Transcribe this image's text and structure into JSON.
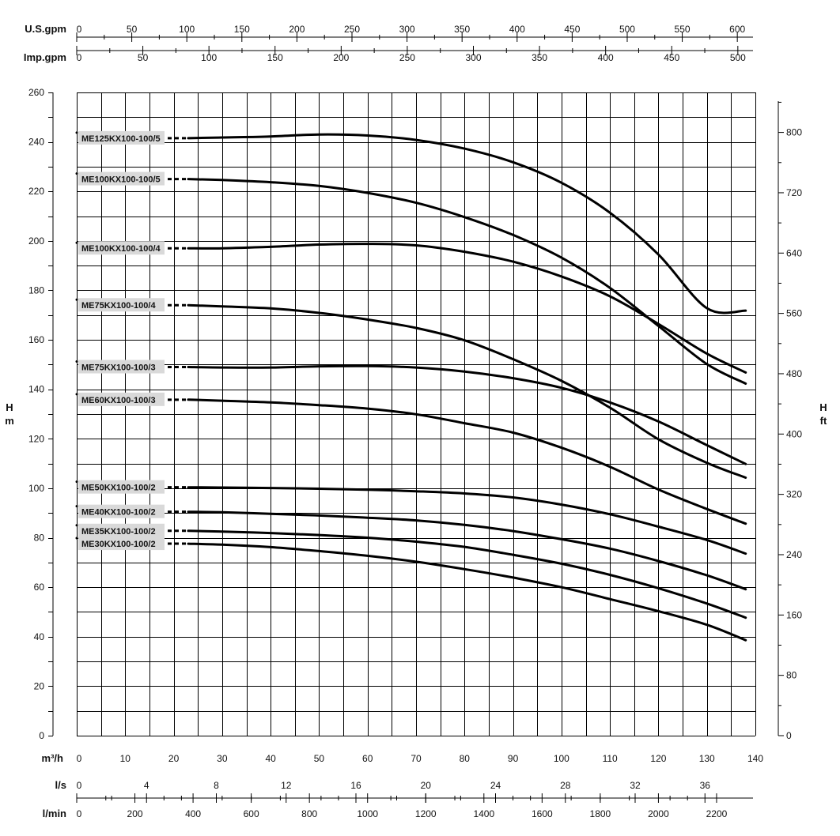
{
  "chart_data": {
    "type": "line",
    "title": "",
    "ylabel_left": {
      "line1": "H",
      "line2": "m"
    },
    "ylabel_right": {
      "line1": "H",
      "line2": "ft"
    },
    "x_main": {
      "label": "m³/h",
      "range": [
        0,
        140
      ],
      "ticks": [
        0,
        10,
        20,
        30,
        40,
        50,
        60,
        70,
        80,
        90,
        100,
        110,
        120,
        130,
        140
      ]
    },
    "y_left": {
      "range": [
        0,
        260
      ],
      "ticks": [
        0,
        20,
        40,
        60,
        80,
        100,
        120,
        140,
        160,
        180,
        200,
        220,
        240,
        260
      ]
    },
    "y_right": {
      "unit": "ft",
      "ticks": [
        0,
        80,
        160,
        240,
        320,
        400,
        480,
        560,
        640,
        720,
        800
      ]
    },
    "x_top_usgpm": {
      "label": "U.S.gpm",
      "ticks": [
        0,
        50,
        100,
        150,
        200,
        250,
        300,
        350,
        400,
        450,
        500,
        550,
        600
      ]
    },
    "x_top_impgpm": {
      "label": "Imp.gpm",
      "ticks": [
        0,
        50,
        100,
        150,
        200,
        250,
        300,
        350,
        400,
        450,
        500
      ]
    },
    "x_bottom_ls": {
      "label": "l/s",
      "ticks": [
        0,
        4,
        8,
        12,
        16,
        20,
        24,
        28,
        32,
        36
      ]
    },
    "x_bottom_lmin": {
      "label": "l/min",
      "ticks": [
        0,
        200,
        400,
        600,
        800,
        1000,
        1200,
        1400,
        1600,
        1800,
        2000,
        2200
      ]
    },
    "grid": true,
    "series": [
      {
        "name": "ME125KX100-100/5",
        "x": [
          23,
          30,
          40,
          50,
          60,
          70,
          80,
          90,
          100,
          110,
          120,
          130,
          138
        ],
        "y": [
          241.5,
          241.8,
          242.2,
          243,
          242.6,
          240.8,
          237.3,
          231.8,
          223.5,
          211.4,
          194.5,
          172.8,
          171.8
        ]
      },
      {
        "name": "ME100KX100-100/5",
        "x": [
          23,
          30,
          40,
          50,
          60,
          70,
          80,
          90,
          100,
          110,
          120,
          130,
          138
        ],
        "y": [
          225,
          224.6,
          223.7,
          222.2,
          219.4,
          215.4,
          209.6,
          202.4,
          193.2,
          181,
          165.6,
          150.2,
          142.3
        ]
      },
      {
        "name": "ME100KX100-100/4",
        "x": [
          23,
          30,
          40,
          50,
          60,
          70,
          80,
          90,
          100,
          110,
          120,
          130,
          138
        ],
        "y": [
          197,
          197,
          197.6,
          198.5,
          198.8,
          198.2,
          195.6,
          191.6,
          185.6,
          177.6,
          166.4,
          154.4,
          146.8
        ]
      },
      {
        "name": "ME75KX100-100/4",
        "x": [
          23,
          30,
          40,
          50,
          60,
          70,
          80,
          90,
          100,
          110,
          120,
          130,
          138
        ],
        "y": [
          174,
          173.5,
          172.7,
          170.9,
          168.2,
          164.8,
          159.8,
          152.2,
          143.4,
          132.6,
          119.8,
          110.3,
          104.3
        ]
      },
      {
        "name": "ME75KX100-100/3",
        "x": [
          23,
          30,
          40,
          50,
          60,
          70,
          80,
          90,
          100,
          110,
          120,
          130,
          138
        ],
        "y": [
          149,
          148.8,
          148.8,
          149.3,
          149.4,
          148.8,
          147.2,
          144.5,
          140.6,
          134.7,
          127,
          117.4,
          109.8
        ]
      },
      {
        "name": "ME60KX100-100/3",
        "x": [
          23,
          30,
          40,
          50,
          60,
          70,
          80,
          90,
          100,
          110,
          120,
          130,
          138
        ],
        "y": [
          135.8,
          135.4,
          134.7,
          133.6,
          132.2,
          129.9,
          126.3,
          122.5,
          116.4,
          108.7,
          99.5,
          91.6,
          85.7
        ]
      },
      {
        "name": "ME50KX100-100/2",
        "x": [
          23,
          30,
          40,
          50,
          60,
          70,
          80,
          90,
          100,
          110,
          120,
          130,
          138
        ],
        "y": [
          100.4,
          100.3,
          100.1,
          99.8,
          99.4,
          98.8,
          97.9,
          96.3,
          93.4,
          89.5,
          84.5,
          79.1,
          73.6
        ]
      },
      {
        "name": "ME40KX100-100/2",
        "x": [
          23,
          30,
          40,
          50,
          60,
          70,
          80,
          90,
          100,
          110,
          120,
          130,
          138
        ],
        "y": [
          90.5,
          90.3,
          89.7,
          89,
          88.1,
          87,
          85.2,
          82.7,
          79.4,
          75.6,
          70.6,
          64.8,
          59.2
        ]
      },
      {
        "name": "ME35KX100-100/2",
        "x": [
          23,
          30,
          40,
          50,
          60,
          70,
          80,
          90,
          100,
          110,
          120,
          130,
          138
        ],
        "y": [
          82.8,
          82.5,
          81.9,
          81.1,
          80,
          78.4,
          76.3,
          73.1,
          69.5,
          65,
          59.6,
          53.4,
          47.7
        ]
      },
      {
        "name": "ME30KX100-100/2",
        "x": [
          23,
          30,
          40,
          50,
          60,
          70,
          80,
          90,
          100,
          110,
          120,
          130,
          138
        ],
        "y": [
          77.6,
          77.2,
          76.2,
          74.6,
          72.7,
          70.3,
          67.3,
          63.9,
          60,
          55.2,
          50.3,
          44.8,
          38.6
        ]
      }
    ]
  }
}
